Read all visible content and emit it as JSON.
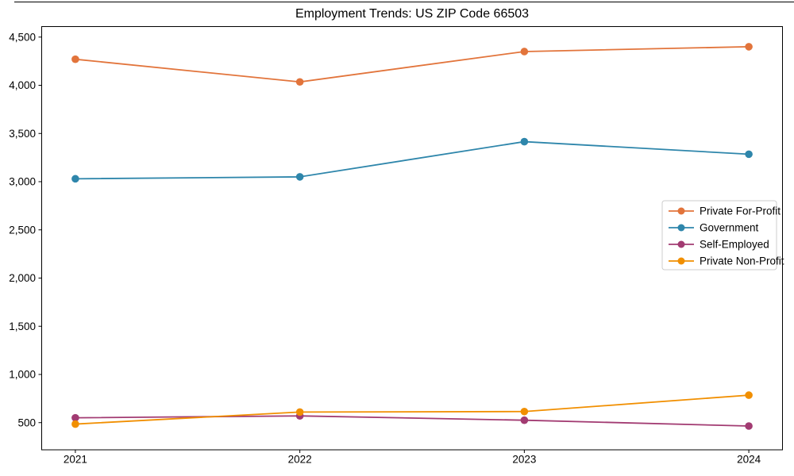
{
  "chart_data": {
    "type": "line",
    "title": "Employment Trends: US ZIP Code 66503",
    "xlabel": "",
    "ylabel": "",
    "x": [
      2021,
      2022,
      2023,
      2024
    ],
    "x_tick_labels": [
      "2021",
      "2022",
      "2023",
      "2024"
    ],
    "series": [
      {
        "name": "Private For-Profit",
        "color": "#e2743b",
        "values": [
          4270,
          4035,
          4350,
          4400
        ]
      },
      {
        "name": "Government",
        "color": "#2e86ab",
        "values": [
          3030,
          3050,
          3415,
          3285
        ]
      },
      {
        "name": "Self-Employed",
        "color": "#a23b72",
        "values": [
          550,
          570,
          525,
          465
        ]
      },
      {
        "name": "Private Non-Profit",
        "color": "#f18f01",
        "values": [
          485,
          610,
          615,
          785
        ]
      }
    ],
    "yticks": [
      500,
      1000,
      1500,
      2000,
      2500,
      3000,
      3500,
      4000,
      4500
    ],
    "ytick_labels": [
      "500",
      "1,000",
      "1,500",
      "2,000",
      "2,500",
      "3,000",
      "3,500",
      "4,000",
      "4,500"
    ],
    "xlim": [
      2020.85,
      2024.15
    ],
    "ylim": [
      218,
      4609
    ],
    "grid": false,
    "marker": "circle",
    "legend_position": "center-right",
    "legend_border_color": "#cccccc",
    "axis_color": "#000000"
  }
}
